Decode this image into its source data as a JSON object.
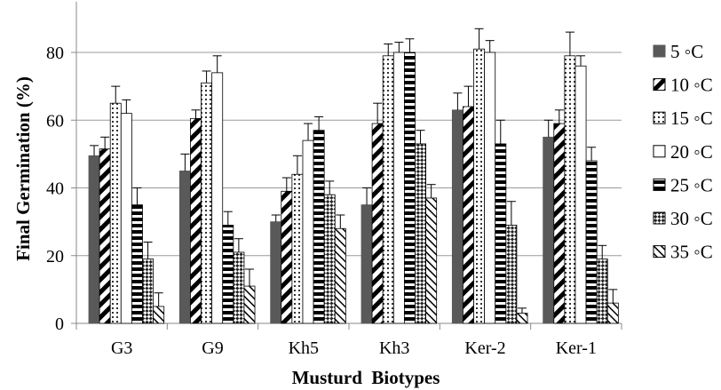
{
  "chart_data": {
    "type": "bar",
    "title": "",
    "xlabel": "Musturd  Biotypes",
    "ylabel": "Final Germination (%)",
    "ylim": [
      0,
      95
    ],
    "yticks": [
      0,
      20,
      40,
      60,
      80
    ],
    "categories": [
      "G3",
      "G9",
      "Kh5",
      "Kh3",
      "Ker-2",
      "Ker-1"
    ],
    "grid": "horizontal",
    "legend_position": "right",
    "series": [
      {
        "name": "5 ◦C",
        "pattern": "solid",
        "values": [
          49.5,
          45,
          30,
          35,
          63,
          55
        ],
        "errors": [
          3,
          5,
          2,
          5,
          5,
          5
        ]
      },
      {
        "name": "10 ◦C",
        "pattern": "diag-thick",
        "values": [
          51.5,
          60.5,
          39,
          59,
          64,
          59
        ],
        "errors": [
          3.5,
          2.5,
          4,
          6,
          6,
          4
        ]
      },
      {
        "name": "15 ◦C",
        "pattern": "dots",
        "values": [
          65,
          71,
          44,
          79,
          81,
          79
        ],
        "errors": [
          5,
          3.5,
          5.5,
          3.5,
          6,
          7
        ]
      },
      {
        "name": "20 ◦C",
        "pattern": "white",
        "values": [
          62,
          74,
          54,
          80,
          80,
          76
        ],
        "errors": [
          4,
          5,
          5,
          3,
          3.5,
          3
        ]
      },
      {
        "name": "25 ◦C",
        "pattern": "horizontal",
        "values": [
          35,
          29,
          57,
          80,
          53,
          48
        ],
        "errors": [
          5,
          4,
          4,
          4,
          7,
          4
        ]
      },
      {
        "name": "30 ◦C",
        "pattern": "checker",
        "values": [
          19,
          21,
          38,
          53,
          29,
          19
        ],
        "errors": [
          5,
          4,
          4,
          4,
          7,
          4
        ]
      },
      {
        "name": "35 ◦C",
        "pattern": "diag-thin",
        "values": [
          5,
          11,
          28,
          37,
          3,
          6
        ],
        "errors": [
          4,
          5,
          4,
          4,
          1.5,
          4
        ]
      }
    ]
  }
}
